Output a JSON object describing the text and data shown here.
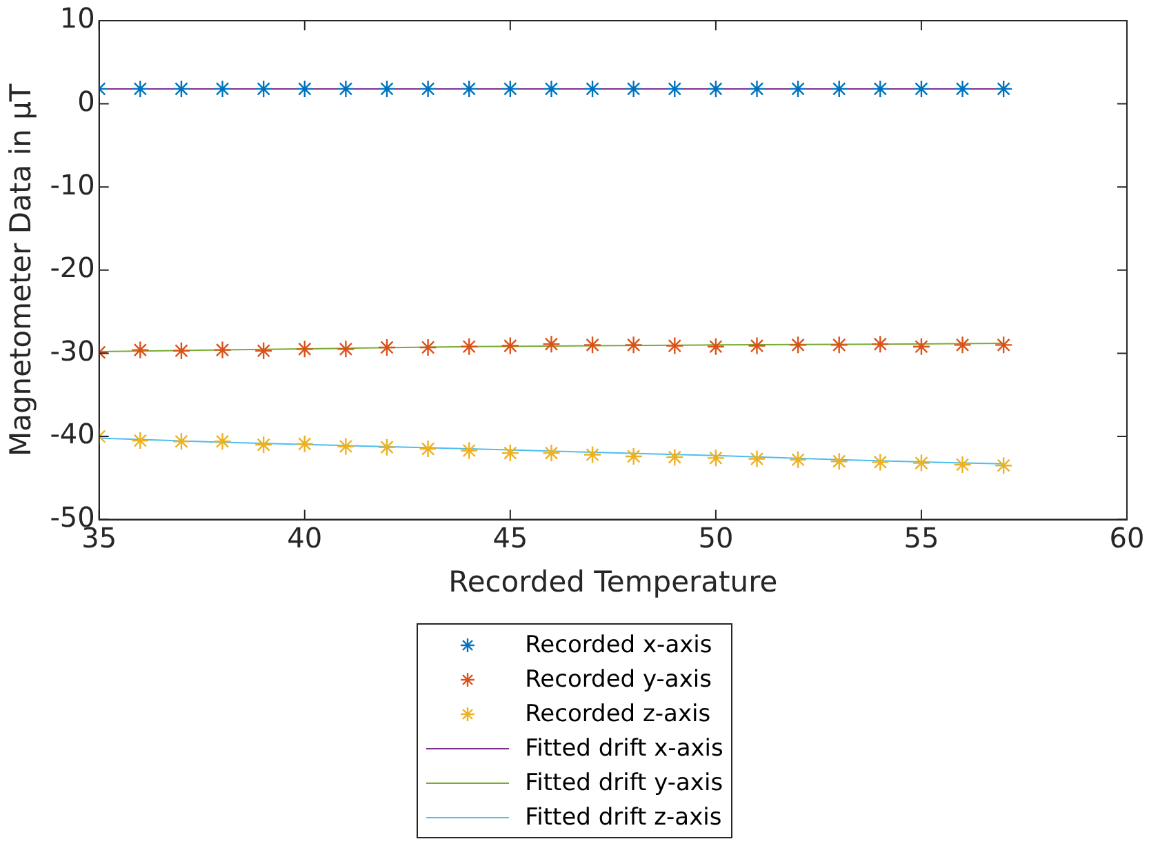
{
  "chart_data": {
    "type": "scatter",
    "xlabel": "Recorded Temperature",
    "ylabel": "Magnetometer Data in μT",
    "x": [
      35,
      36,
      37,
      38,
      39,
      40,
      41,
      42,
      43,
      44,
      45,
      46,
      47,
      48,
      49,
      50,
      51,
      52,
      53,
      54,
      55,
      56,
      57
    ],
    "xlim": [
      35,
      60
    ],
    "xticks": [
      35,
      40,
      45,
      50,
      55,
      60
    ],
    "ylim": [
      -50,
      10
    ],
    "yticks": [
      -50,
      -40,
      -30,
      -20,
      -10,
      0,
      10
    ],
    "grid": false,
    "legend": "bottom",
    "series": [
      {
        "name": "Recorded x-axis",
        "type": "scatter",
        "marker": "cross",
        "color": "#0072bd",
        "values": [
          1.8,
          1.8,
          1.8,
          1.8,
          1.8,
          1.8,
          1.8,
          1.8,
          1.8,
          1.8,
          1.8,
          1.8,
          1.8,
          1.8,
          1.8,
          1.8,
          1.8,
          1.8,
          1.8,
          1.8,
          1.8,
          1.8,
          1.8
        ]
      },
      {
        "name": "Recorded y-axis",
        "type": "scatter",
        "marker": "cross",
        "color": "#d95319",
        "values": [
          -29.9,
          -29.6,
          -29.7,
          -29.6,
          -29.7,
          -29.5,
          -29.5,
          -29.3,
          -29.3,
          -29.2,
          -29.1,
          -28.9,
          -29.0,
          -29.0,
          -29.1,
          -29.2,
          -29.1,
          -29.0,
          -29.0,
          -28.9,
          -29.2,
          -29.0,
          -29.0
        ]
      },
      {
        "name": "Recorded z-axis",
        "type": "scatter",
        "marker": "cross",
        "color": "#edb120",
        "values": [
          -40.0,
          -40.5,
          -40.6,
          -40.6,
          -41.0,
          -40.9,
          -41.2,
          -41.3,
          -41.5,
          -41.7,
          -42.0,
          -42.0,
          -42.2,
          -42.4,
          -42.5,
          -42.6,
          -42.7,
          -42.8,
          -43.0,
          -43.1,
          -43.2,
          -43.4,
          -43.5
        ]
      },
      {
        "name": "Fitted drift x-axis",
        "type": "line",
        "marker": "none",
        "color": "#7e2f8e",
        "x": [
          35,
          57
        ],
        "values": [
          1.8,
          1.8
        ]
      },
      {
        "name": "Fitted drift y-axis",
        "type": "line",
        "marker": "none",
        "color": "#77ac30",
        "x": [
          35,
          38,
          41,
          44,
          47,
          50,
          54,
          57
        ],
        "values": [
          -29.8,
          -29.6,
          -29.4,
          -29.2,
          -29.1,
          -29.0,
          -28.9,
          -28.8
        ]
      },
      {
        "name": "Fitted drift z-axis",
        "type": "line",
        "marker": "none",
        "color": "#4dbeee",
        "x": [
          35,
          38,
          41,
          44,
          47,
          50,
          53,
          56,
          57
        ],
        "values": [
          -40.2,
          -40.7,
          -41.1,
          -41.5,
          -41.9,
          -42.3,
          -42.8,
          -43.2,
          -43.3
        ]
      }
    ]
  }
}
